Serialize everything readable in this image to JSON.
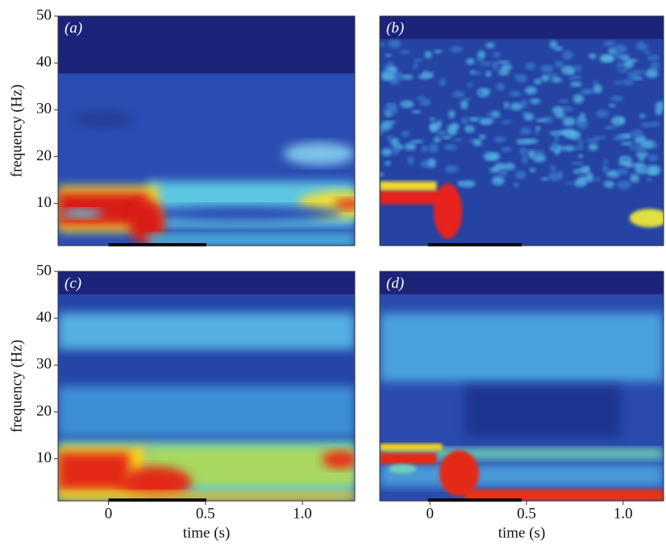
{
  "chart_data": [
    {
      "type": "heatmap",
      "panel_label": "(a)",
      "ylabel": "frequency (Hz)",
      "xlim": [
        -0.26,
        1.27
      ],
      "ylim": [
        1,
        50
      ],
      "yticks": [
        10,
        20,
        30,
        40,
        50
      ]
    },
    {
      "type": "heatmap",
      "panel_label": "(b)",
      "xlim": [
        -0.26,
        1.21
      ],
      "ylim": [
        1,
        50
      ]
    },
    {
      "type": "heatmap",
      "panel_label": "(c)",
      "ylabel": "frequency (Hz)",
      "xlabel": "time (s)",
      "xlim": [
        -0.26,
        1.27
      ],
      "ylim": [
        1,
        50
      ],
      "yticks": [
        10,
        20,
        30,
        40,
        50
      ],
      "xticks": [
        0,
        0.5,
        {
          "value": 1,
          "label": "1.0"
        }
      ]
    },
    {
      "type": "heatmap",
      "panel_label": "(d)",
      "xlabel": "time (s)",
      "xlim": [
        -0.26,
        1.21
      ],
      "ylim": [
        1,
        50
      ],
      "xticks": [
        0,
        0.5,
        {
          "value": 1,
          "label": "1.0"
        }
      ]
    }
  ]
}
